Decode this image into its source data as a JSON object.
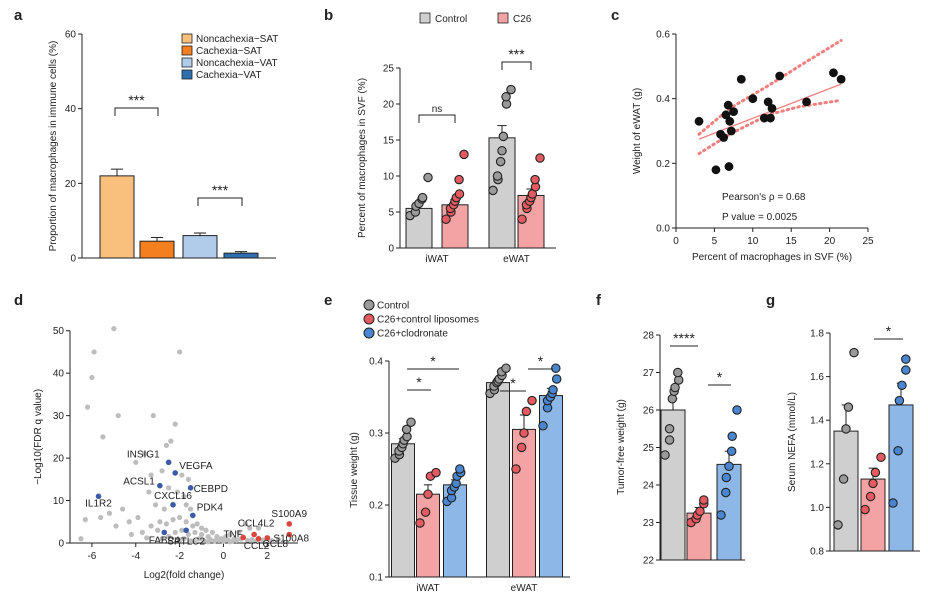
{
  "colors": {
    "noncachexia_sat": "#f9bf7d",
    "cachexia_sat": "#f47f1f",
    "noncachexia_vat": "#b1cbea",
    "cachexia_vat": "#2e6fb1",
    "control": "#cfcfcf",
    "c26": "#f4a3a5",
    "c26_control_liposomes": "#f4a3a5",
    "c26_clodronate": "#8db7e6",
    "dot_control": "#9a9a9a",
    "dot_c26": "#e35b60",
    "dot_clodronate": "#4a86cf",
    "volcano_grey": "#bdbdbd",
    "volcano_blue": "#3b5ba8",
    "volcano_red": "#d9453f",
    "fit_line": "#f27e7e"
  },
  "chart_data": [
    {
      "panel": "a",
      "type": "bar",
      "ylabel": "Proportion of macrophages in immune cells (%)",
      "ylim": [
        0,
        60
      ],
      "yticks": [
        0,
        20,
        40,
        60
      ],
      "series": [
        {
          "name": "Noncachexia−SAT",
          "value": 22,
          "error": 1.8
        },
        {
          "name": "Cachexia−SAT",
          "value": 4.5,
          "error": 1.0
        },
        {
          "name": "Noncachexia−VAT",
          "value": 6,
          "error": 0.7
        },
        {
          "name": "Cachexia−VAT",
          "value": 1.3,
          "error": 0.4
        }
      ],
      "significance": [
        {
          "between": [
            "Noncachexia−SAT",
            "Cachexia−SAT"
          ],
          "label": "***"
        },
        {
          "between": [
            "Noncachexia−VAT",
            "Cachexia−VAT"
          ],
          "label": "***"
        }
      ],
      "legend_position": "top-right",
      "grid": false
    },
    {
      "panel": "b",
      "type": "bar",
      "ylabel": "Percent of macrophages in SVF (%)",
      "ylim": [
        0,
        25
      ],
      "yticks": [
        0,
        5,
        10,
        15,
        20,
        25
      ],
      "categories": [
        "iWAT",
        "eWAT"
      ],
      "series": [
        {
          "name": "Control",
          "values": [
            5.5,
            15.3
          ],
          "errors": [
            0.8,
            1.7
          ],
          "points": [
            [
              4.5,
              5.0,
              5.8,
              6.2,
              6.8,
              7.0,
              9.8
            ],
            [
              8.0,
              9.5,
              10.0,
              12.0,
              13.5,
              15.5,
              20.0,
              21.0,
              22.0
            ]
          ]
        },
        {
          "name": "C26",
          "values": [
            6.0,
            7.3
          ],
          "errors": [
            0.7,
            0.9
          ],
          "points": [
            [
              4.0,
              5.0,
              5.5,
              6.0,
              6.5,
              7.0,
              7.5,
              9.5,
              13.0
            ],
            [
              4.0,
              5.5,
              6.0,
              6.5,
              7.0,
              7.5,
              8.5,
              9.5,
              12.5
            ]
          ]
        }
      ],
      "significance": [
        {
          "category": "iWAT",
          "label": "ns"
        },
        {
          "category": "eWAT",
          "label": "***"
        }
      ],
      "legend_position": "top",
      "grid": false
    },
    {
      "panel": "c",
      "type": "scatter",
      "xlabel": "Percent of macrophages in SVF (%)",
      "ylabel": "Weight of eWAT (g)",
      "xlim": [
        0,
        25
      ],
      "ylim": [
        0,
        0.6
      ],
      "xticks": [
        0,
        5,
        10,
        15,
        20,
        25
      ],
      "yticks": [
        0.0,
        0.2,
        0.4,
        0.6
      ],
      "points": [
        [
          3,
          0.33
        ],
        [
          5.2,
          0.18
        ],
        [
          5.8,
          0.29
        ],
        [
          6.2,
          0.28
        ],
        [
          6.5,
          0.35
        ],
        [
          6.8,
          0.38
        ],
        [
          6.9,
          0.19
        ],
        [
          7.0,
          0.33
        ],
        [
          7.2,
          0.3
        ],
        [
          7.5,
          0.36
        ],
        [
          8.5,
          0.46
        ],
        [
          10.0,
          0.4
        ],
        [
          11.5,
          0.34
        ],
        [
          12.0,
          0.39
        ],
        [
          12.3,
          0.34
        ],
        [
          12.5,
          0.37
        ],
        [
          13.5,
          0.47
        ],
        [
          17.0,
          0.39
        ],
        [
          20.5,
          0.48
        ],
        [
          21.5,
          0.46
        ]
      ],
      "fit": {
        "x": [
          3,
          21.5
        ],
        "y": [
          0.275,
          0.445
        ]
      },
      "ci_upper": {
        "x": [
          3,
          7,
          12,
          16,
          21.5
        ],
        "y": [
          0.29,
          0.37,
          0.44,
          0.5,
          0.58
        ]
      },
      "ci_lower": {
        "x": [
          3,
          7,
          12,
          16,
          21.5
        ],
        "y": [
          0.23,
          0.29,
          0.35,
          0.375,
          0.395
        ]
      },
      "annotations": [
        "Pearson's ρ = 0.68",
        "P value = 0.0025"
      ],
      "grid": false
    },
    {
      "panel": "d",
      "type": "scatter",
      "xlabel": "Log2(fold change)",
      "ylabel": "−Log10(FDR q value)",
      "xlim": [
        -7,
        3.4
      ],
      "ylim": [
        0,
        53
      ],
      "xticks": [
        -6,
        -4,
        -2,
        0,
        2
      ],
      "yticks": [
        0,
        10,
        20,
        30,
        40,
        50
      ],
      "labeled_genes": [
        {
          "gene": "INSIG1",
          "x": -2.5,
          "y": 19,
          "group": "down"
        },
        {
          "gene": "VEGFA",
          "x": -2.2,
          "y": 16.5,
          "group": "down"
        },
        {
          "gene": "ACSL1",
          "x": -2.9,
          "y": 13.5,
          "group": "down"
        },
        {
          "gene": "CEBPD",
          "x": -1.5,
          "y": 13.0,
          "group": "down"
        },
        {
          "gene": "IL1R2",
          "x": -5.7,
          "y": 11,
          "group": "down"
        },
        {
          "gene": "CXCL16",
          "x": -2.3,
          "y": 9.0,
          "group": "down"
        },
        {
          "gene": "PDK4",
          "x": -1.4,
          "y": 6.5,
          "group": "down"
        },
        {
          "gene": "FABP4",
          "x": -2.7,
          "y": 2.5,
          "group": "down"
        },
        {
          "gene": "SPTLC2",
          "x": -1.7,
          "y": 3.0,
          "group": "down"
        },
        {
          "gene": "TNF",
          "x": 0.9,
          "y": 1.3,
          "group": "up"
        },
        {
          "gene": "CCL4L2",
          "x": 1.4,
          "y": 2.0,
          "group": "up"
        },
        {
          "gene": "CCL2",
          "x": 1.6,
          "y": 1.0,
          "group": "up"
        },
        {
          "gene": "CCL8",
          "x": 2.0,
          "y": 1.2,
          "group": "up"
        },
        {
          "gene": "S100A9",
          "x": 3.0,
          "y": 4.5,
          "group": "up"
        },
        {
          "gene": "S100A8",
          "x": 3.0,
          "y": 2.0,
          "group": "up"
        }
      ],
      "background_points": [
        [
          -5.0,
          50.5
        ],
        [
          -5.9,
          45
        ],
        [
          -2.0,
          45
        ],
        [
          -6.0,
          39
        ],
        [
          -4.8,
          30
        ],
        [
          -6.2,
          32
        ],
        [
          -2.2,
          28
        ],
        [
          -5.5,
          25
        ],
        [
          -3.2,
          30
        ],
        [
          -2.6,
          23
        ],
        [
          -4.0,
          19
        ],
        [
          -3.6,
          21
        ],
        [
          -2.4,
          24
        ],
        [
          -3.3,
          16
        ],
        [
          -2.8,
          17
        ],
        [
          -2.5,
          13
        ],
        [
          -3.4,
          12
        ],
        [
          -1.9,
          16
        ],
        [
          -1.6,
          15
        ],
        [
          -2.1,
          12
        ],
        [
          -1.8,
          11
        ],
        [
          -3.1,
          9
        ],
        [
          -2.7,
          8
        ],
        [
          -1.7,
          9
        ],
        [
          -1.5,
          8
        ],
        [
          -4.6,
          8
        ],
        [
          -5.2,
          7
        ],
        [
          -6.3,
          5.5
        ],
        [
          -5.6,
          6
        ],
        [
          -4.9,
          4
        ],
        [
          -4.3,
          5
        ],
        [
          -3.9,
          6
        ],
        [
          -3.3,
          4
        ],
        [
          -2.9,
          5
        ],
        [
          -2.6,
          4.5
        ],
        [
          -2.3,
          5.5
        ],
        [
          -2.0,
          6
        ],
        [
          -1.7,
          5
        ],
        [
          -1.4,
          4
        ],
        [
          -1.2,
          4.5
        ],
        [
          -1.0,
          3.5
        ],
        [
          -0.8,
          3
        ],
        [
          -1.9,
          3
        ],
        [
          -2.2,
          2.5
        ],
        [
          -1.6,
          2
        ],
        [
          -1.3,
          2.5
        ],
        [
          -1.0,
          2
        ],
        [
          -0.7,
          1.5
        ],
        [
          -0.5,
          2.5
        ],
        [
          -0.3,
          1.5
        ],
        [
          -0.1,
          1
        ],
        [
          0.1,
          1.5
        ],
        [
          0.3,
          2
        ],
        [
          0.5,
          1
        ],
        [
          -2.5,
          1.5
        ],
        [
          -1.8,
          1
        ],
        [
          -1.1,
          1
        ],
        [
          -0.9,
          0.6
        ],
        [
          -0.6,
          0.8
        ],
        [
          -0.4,
          0.5
        ],
        [
          -0.2,
          0.6
        ],
        [
          0.0,
          0.4
        ],
        [
          0.2,
          0.7
        ],
        [
          0.4,
          0.5
        ],
        [
          0.6,
          0.6
        ],
        [
          0.8,
          0.9
        ],
        [
          1.1,
          0.6
        ],
        [
          1.3,
          0.8
        ],
        [
          1.5,
          0.5
        ],
        [
          1.8,
          0.7
        ],
        [
          2.2,
          0.6
        ],
        [
          2.5,
          0.9
        ],
        [
          1.2,
          3.5
        ],
        [
          1.0,
          4.5
        ],
        [
          1.6,
          3.5
        ],
        [
          0.7,
          2.5
        ],
        [
          -1.5,
          0.5
        ],
        [
          -2.0,
          0.7
        ],
        [
          -2.8,
          1
        ],
        [
          -3.5,
          1.2
        ],
        [
          -1.3,
          0.3
        ],
        [
          -0.7,
          0.3
        ],
        [
          0.3,
          0.3
        ],
        [
          -3.0,
          3
        ],
        [
          -3.7,
          2.5
        ],
        [
          -4.2,
          2
        ],
        [
          -6.5,
          1
        ]
      ],
      "grid": false
    },
    {
      "panel": "e",
      "type": "bar",
      "ylabel": "Tissue weight (g)",
      "ylim": [
        0.1,
        0.45
      ],
      "yticks": [
        0.1,
        0.2,
        0.3,
        0.4
      ],
      "categories": [
        "iWAT",
        "eWAT"
      ],
      "series": [
        {
          "name": "Control",
          "values": [
            0.285,
            0.37
          ],
          "errors": [
            0.007,
            0.006
          ],
          "points": [
            [
              0.265,
              0.27,
              0.275,
              0.28,
              0.285,
              0.29,
              0.295,
              0.305,
              0.315
            ],
            [
              0.355,
              0.36,
              0.365,
              0.37,
              0.372,
              0.375,
              0.38,
              0.385,
              0.39
            ]
          ]
        },
        {
          "name": "C26+control liposomes",
          "values": [
            0.215,
            0.305
          ],
          "errors": [
            0.013,
            0.02
          ],
          "points": [
            [
              0.175,
              0.19,
              0.215,
              0.24,
              0.245
            ],
            [
              0.25,
              0.28,
              0.3,
              0.33,
              0.345
            ]
          ]
        },
        {
          "name": "C26+clodronate",
          "values": [
            0.228,
            0.352
          ],
          "errors": [
            0.007,
            0.01
          ],
          "points": [
            [
              0.205,
              0.21,
              0.22,
              0.225,
              0.23,
              0.24,
              0.245,
              0.25
            ],
            [
              0.31,
              0.335,
              0.345,
              0.35,
              0.355,
              0.36,
              0.375,
              0.39
            ]
          ]
        }
      ],
      "significance": [
        {
          "category": "iWAT",
          "label": "*"
        },
        {
          "category": "iWAT",
          "label": "*"
        },
        {
          "category": "eWAT",
          "label": "*"
        },
        {
          "category": "eWAT",
          "label": "*"
        }
      ],
      "legend_position": "top-left",
      "grid": false
    },
    {
      "panel": "f",
      "type": "bar",
      "ylabel": "Tumor-free weight (g)",
      "ylim": [
        22,
        28
      ],
      "yticks": [
        22,
        23,
        24,
        25,
        26,
        27,
        28
      ],
      "series": [
        {
          "name": "Control",
          "value": 26.0,
          "error": 0.3,
          "points": [
            24.8,
            25.2,
            25.5,
            26.3,
            26.5,
            26.6,
            26.8,
            27.0
          ]
        },
        {
          "name": "C26+control liposomes",
          "value": 23.25,
          "error": 0.15,
          "points": [
            23.0,
            23.1,
            23.2,
            23.3,
            23.5,
            23.6
          ]
        },
        {
          "name": "C26+clodronate",
          "value": 24.55,
          "error": 0.35,
          "points": [
            23.2,
            23.8,
            24.2,
            24.5,
            24.9,
            25.3,
            26.0
          ]
        }
      ],
      "significance": [
        {
          "between": [
            "Control",
            "C26+control liposomes"
          ],
          "label": "****"
        },
        {
          "between": [
            "C26+control liposomes",
            "C26+clodronate"
          ],
          "label": "*"
        }
      ],
      "grid": false
    },
    {
      "panel": "g",
      "type": "bar",
      "ylabel": "Serum NEFA (mmol/L)",
      "ylim": [
        0.8,
        1.8
      ],
      "yticks": [
        0.8,
        1.0,
        1.2,
        1.4,
        1.6,
        1.8
      ],
      "series": [
        {
          "name": "Control",
          "value": 1.35,
          "error": 0.12,
          "points": [
            0.92,
            1.13,
            1.36,
            1.46,
            1.71
          ]
        },
        {
          "name": "C26+control liposomes",
          "value": 1.13,
          "error": 0.05,
          "points": [
            0.99,
            1.05,
            1.11,
            1.16,
            1.23
          ]
        },
        {
          "name": "C26+clodronate",
          "value": 1.47,
          "error": 0.1,
          "points": [
            1.02,
            1.26,
            1.49,
            1.56,
            1.63,
            1.68
          ]
        }
      ],
      "significance": [
        {
          "between": [
            "C26+control liposomes",
            "C26+clodronate"
          ],
          "label": "*"
        }
      ],
      "grid": false
    }
  ]
}
